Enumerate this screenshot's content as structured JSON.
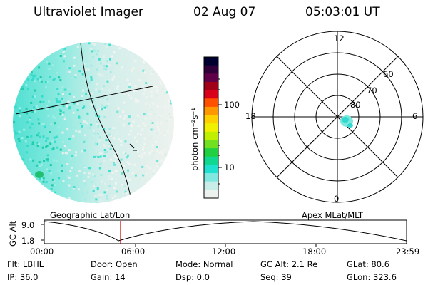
{
  "header": {
    "instrument": "Ultraviolet Imager",
    "date": "02 Aug 07",
    "time": "05:03:01 UT"
  },
  "colorbar": {
    "label": "photon cm⁻²s⁻¹",
    "ticks": [
      "100",
      "10"
    ],
    "colors": [
      "#000030",
      "#30003a",
      "#600048",
      "#a00018",
      "#d8001a",
      "#ff5000",
      "#ff9800",
      "#ffd000",
      "#f0f000",
      "#c0f000",
      "#70e020",
      "#20d040",
      "#10d890",
      "#20e0d0",
      "#80e8e0",
      "#c8ece8",
      "#eef2ee"
    ]
  },
  "polar_plot": {
    "mlt_labels": [
      "12",
      "6",
      "0",
      "18"
    ],
    "lat_labels": [
      "60",
      "70",
      "80"
    ]
  },
  "altitude_plot": {
    "left_title": "Geographic Lat/Lon",
    "right_title": "Apex MLat/MLT",
    "ylabel": "GC Alt",
    "y_ticks": [
      "9.0",
      "1.8"
    ],
    "x_ticks": [
      "00:00",
      "06:00",
      "12:00",
      "18:00",
      "23:59"
    ],
    "current_marker_hour": 5.05
  },
  "status": {
    "flt": "Flt: LBHL",
    "door": "Door: Open",
    "mode": "Mode: Normal",
    "gc_alt": "GC Alt: 2.1 Re",
    "glat": "GLat:  80.6",
    "ip": "IP: 36.0",
    "gain": "Gain: 14",
    "dsp": "Dsp:     0.0",
    "seq": "Seq: 39",
    "glon": "GLon: 323.6"
  }
}
